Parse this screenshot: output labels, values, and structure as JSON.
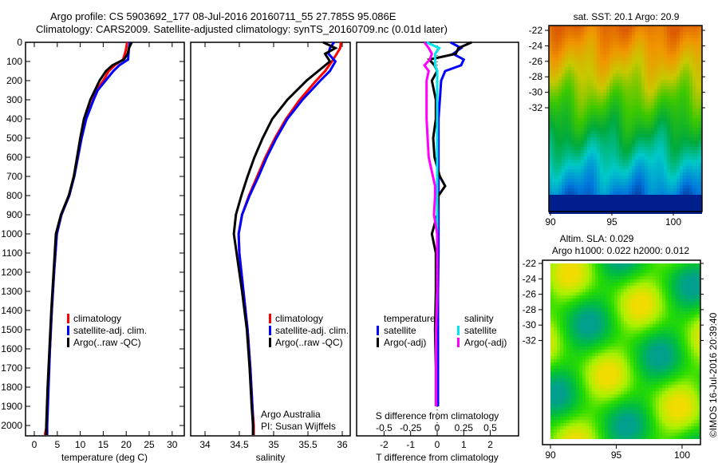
{
  "title": {
    "line1": "Argo profile: CS 5903692_177 08-Jul-2016 20160711_55 27.785S 95.086E",
    "line2": "Climatology: CARS2009. Satellite-adjusted climatology: synTS_20160709.nc (0.01d later)"
  },
  "credit": {
    "line1": "Argo Australia",
    "line2": "PI: Susan Wijffels"
  },
  "stamp": "©IMOS 16-Jul-2016 20:39:40",
  "colors": {
    "climatology": "#ff0000",
    "satellite": "#0000ff",
    "argo": "#000000",
    "sal_satellite": "#00e5ee",
    "sal_argo": "#ff00ff"
  },
  "chart_data": [
    {
      "type": "line",
      "id": "temperature",
      "xlabel": "temperature (deg C)",
      "ylabel": "",
      "xlim": [
        -2,
        32.5
      ],
      "ylim": [
        2060,
        0
      ],
      "xticks": [
        "0",
        "5",
        "10",
        "15",
        "20",
        "25",
        "30"
      ],
      "yticks": [
        "0",
        "100",
        "200",
        "300",
        "400",
        "500",
        "600",
        "700",
        "800",
        "900",
        "1000",
        "1100",
        "1200",
        "1300",
        "1400",
        "1500",
        "1600",
        "1700",
        "1800",
        "1900",
        "2000"
      ],
      "legend": [
        "climatology",
        "satellite-adj. clim.",
        "Argo(..raw -QC)"
      ],
      "depth": [
        0,
        30,
        60,
        90,
        120,
        150,
        200,
        250,
        300,
        400,
        500,
        600,
        700,
        800,
        900,
        1000,
        1200,
        1400,
        1600,
        1800,
        2000,
        2050
      ],
      "series": [
        {
          "name": "climatology",
          "values": [
            20.2,
            20.0,
            19.7,
            19.3,
            17.5,
            16.2,
            15.0,
            13.6,
            12.8,
            11.2,
            10.2,
            9.4,
            8.6,
            7.6,
            5.9,
            4.9,
            4.3,
            3.8,
            3.4,
            3.0,
            2.7,
            2.3
          ]
        },
        {
          "name": "satellite-adj. clim.",
          "values": [
            20.8,
            20.6,
            20.5,
            20.4,
            18.5,
            17.2,
            15.5,
            13.8,
            12.9,
            11.3,
            10.3,
            9.5,
            8.7,
            7.6,
            5.9,
            4.9,
            4.3,
            3.8,
            3.4,
            3.1,
            2.8,
            2.8
          ]
        },
        {
          "name": "Argo(..raw -QC)",
          "values": [
            21.2,
            20.6,
            20.3,
            19.5,
            17.0,
            15.6,
            14.2,
            13.2,
            12.2,
            10.8,
            10.0,
            9.3,
            8.6,
            7.5,
            5.8,
            4.7,
            4.2,
            3.7,
            3.3,
            2.9,
            2.6,
            2.6
          ]
        }
      ]
    },
    {
      "type": "line",
      "id": "salinity",
      "xlabel": "salinity",
      "xlim": [
        33.8,
        36.1
      ],
      "ylim": [
        2060,
        0
      ],
      "xticks": [
        "34",
        "34.5",
        "35",
        "35.5",
        "36"
      ],
      "legend": [
        "climatology",
        "satellite-adj. clim.",
        "Argo(..raw -QC)"
      ],
      "depth": [
        0,
        30,
        60,
        100,
        150,
        200,
        300,
        400,
        500,
        600,
        700,
        800,
        900,
        1000,
        1100,
        1300,
        1500,
        1700,
        1900,
        2000,
        2050
      ],
      "series": [
        {
          "name": "climatology",
          "values": [
            35.98,
            35.97,
            35.92,
            35.85,
            35.75,
            35.62,
            35.38,
            35.18,
            35.02,
            34.88,
            34.76,
            34.64,
            34.54,
            34.49,
            34.5,
            34.56,
            34.62,
            34.66,
            34.69,
            34.71,
            34.71
          ]
        },
        {
          "name": "satellite-adj. clim.",
          "values": [
            35.88,
            35.82,
            35.8,
            35.9,
            35.82,
            35.68,
            35.42,
            35.2,
            35.04,
            34.9,
            34.78,
            34.65,
            34.54,
            34.49,
            34.5,
            34.56,
            34.62,
            34.66,
            34.69,
            34.7,
            34.7
          ]
        },
        {
          "name": "Argo(..raw -QC)",
          "values": [
            35.72,
            35.9,
            35.75,
            35.82,
            35.65,
            35.48,
            35.2,
            34.98,
            34.84,
            34.72,
            34.62,
            34.53,
            34.45,
            34.42,
            34.46,
            34.54,
            34.61,
            34.65,
            34.68,
            34.7,
            34.7
          ]
        }
      ]
    },
    {
      "type": "line",
      "id": "differences",
      "xlabel": "T difference from climatology",
      "x2label": "S difference from climatology",
      "xlim": [
        -3,
        3.1
      ],
      "ylim": [
        2060,
        0
      ],
      "xticks": [
        "-2",
        "-1",
        "0",
        "1",
        "2"
      ],
      "x2ticks": [
        "-0.5",
        "-0.25",
        "0",
        "0.25",
        "0.5"
      ],
      "legend_left_title": "temperature",
      "legend_right_title": "salinity",
      "legend_left": [
        "satellite",
        "Argo(-adj)"
      ],
      "legend_right": [
        "satellite",
        "Argo(-adj)"
      ],
      "depth": [
        0,
        30,
        60,
        90,
        120,
        150,
        200,
        300,
        400,
        500,
        600,
        700,
        750,
        800,
        900,
        1000,
        1100,
        1300,
        1500,
        1700,
        1900
      ],
      "series": [
        {
          "name": "T satellite",
          "units": "degC",
          "values": [
            0.5,
            0.9,
            0.6,
            1.0,
            0.9,
            0.3,
            0.15,
            0.1,
            0.05,
            0.05,
            0.05,
            0.05,
            0.05,
            0.05,
            0.05,
            0.05,
            0.05,
            0.03,
            0.03,
            0.03,
            0.03
          ]
        },
        {
          "name": "T Argo(-adj)",
          "units": "degC",
          "values": [
            1.3,
            0.8,
            0.7,
            -0.3,
            -0.1,
            0.0,
            -0.2,
            -0.05,
            -0.05,
            -0.15,
            -0.1,
            0.1,
            0.3,
            0.05,
            0.0,
            -0.2,
            -0.05,
            -0.05,
            -0.08,
            -0.05,
            -0.05
          ]
        },
        {
          "name": "S satellite",
          "units": "psu",
          "values": [
            -0.1,
            0.02,
            -0.02,
            -0.02,
            -0.02,
            0.0,
            0.0,
            0.0,
            0.0,
            0.0,
            0.0,
            0.0,
            0.0,
            0.0,
            0.0,
            0.0,
            0.0,
            0.0,
            -0.01,
            -0.01,
            -0.01
          ]
        },
        {
          "name": "S Argo(-adj)",
          "units": "psu",
          "values": [
            -0.12,
            -0.08,
            -0.05,
            -0.07,
            -0.12,
            -0.08,
            -0.1,
            -0.1,
            -0.1,
            -0.09,
            -0.08,
            -0.04,
            -0.02,
            -0.02,
            -0.03,
            0.0,
            0.0,
            0.0,
            -0.01,
            -0.01,
            -0.01
          ]
        }
      ]
    },
    {
      "type": "heatmap",
      "id": "sst-map",
      "title": "sat. SST: 20.1  Argo: 20.9",
      "xlim": [
        89.9,
        101.2
      ],
      "ylim": [
        -33.8,
        -21.9
      ],
      "xticks": [
        "90",
        "95",
        "100"
      ],
      "yticks": [
        "-22",
        "-24",
        "-26",
        "-28",
        "-30",
        "-32"
      ],
      "description_values": "SST decreasing from ~22 in north to ~18 in south"
    },
    {
      "type": "heatmap",
      "id": "sla-map",
      "title1": "Altim. SLA: 0.029",
      "title2": "Argo h1000: 0.022 h2000: 0.012",
      "xlim": [
        89.6,
        101.3
      ],
      "ylim": [
        -33.9,
        -21.8
      ],
      "xticks": [
        "90",
        "95",
        "100"
      ],
      "yticks": [
        "-22",
        "-24",
        "-26",
        "-28",
        "-30",
        "-32"
      ]
    }
  ]
}
